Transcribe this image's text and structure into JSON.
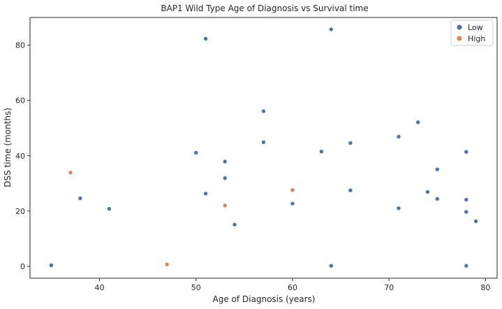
{
  "chart_data": {
    "type": "scatter",
    "title": "BAP1 Wild Type Age of Diagnosis vs Survival time",
    "xlabel": "Age of Diagnosis (years)",
    "ylabel": "DSS time (months)",
    "xlim": [
      32.8,
      81.2
    ],
    "ylim": [
      -4.3,
      90.0
    ],
    "xticks": [
      40,
      50,
      60,
      70,
      80
    ],
    "yticks": [
      0,
      20,
      40,
      60,
      80
    ],
    "grid": false,
    "legend_position": "top-right",
    "series": [
      {
        "name": "Low",
        "color": "#4c72b0",
        "points": [
          {
            "x": 35,
            "y": 0.4
          },
          {
            "x": 38,
            "y": 24.6
          },
          {
            "x": 41,
            "y": 20.8
          },
          {
            "x": 50,
            "y": 41.1
          },
          {
            "x": 51,
            "y": 82.3
          },
          {
            "x": 51,
            "y": 26.3
          },
          {
            "x": 53,
            "y": 37.9
          },
          {
            "x": 53,
            "y": 31.9
          },
          {
            "x": 54,
            "y": 15.1
          },
          {
            "x": 57,
            "y": 56.1
          },
          {
            "x": 57,
            "y": 44.9
          },
          {
            "x": 60,
            "y": 22.7
          },
          {
            "x": 63,
            "y": 41.5
          },
          {
            "x": 64,
            "y": 85.7
          },
          {
            "x": 64,
            "y": 0.2
          },
          {
            "x": 66,
            "y": 44.6
          },
          {
            "x": 66,
            "y": 27.5
          },
          {
            "x": 71,
            "y": 46.9
          },
          {
            "x": 71,
            "y": 21.0
          },
          {
            "x": 73,
            "y": 52.1
          },
          {
            "x": 74,
            "y": 26.9
          },
          {
            "x": 75,
            "y": 35.1
          },
          {
            "x": 75,
            "y": 24.4
          },
          {
            "x": 78,
            "y": 41.4
          },
          {
            "x": 78,
            "y": 24.1
          },
          {
            "x": 78,
            "y": 19.7
          },
          {
            "x": 78,
            "y": 0.2
          },
          {
            "x": 79,
            "y": 16.3
          }
        ]
      },
      {
        "name": "High",
        "color": "#dd8452",
        "points": [
          {
            "x": 37,
            "y": 33.9
          },
          {
            "x": 47,
            "y": 0.7
          },
          {
            "x": 53,
            "y": 22.0
          },
          {
            "x": 60,
            "y": 27.6
          }
        ]
      }
    ]
  }
}
